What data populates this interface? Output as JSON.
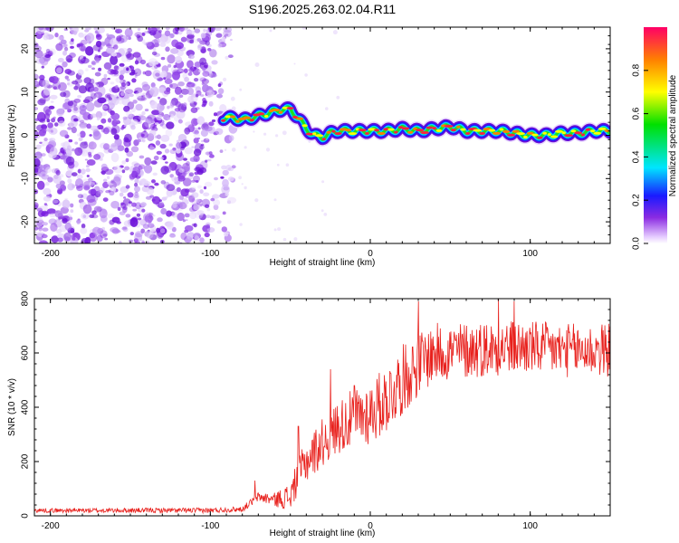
{
  "title": "S196.2025.263.02.04.R11",
  "colors": {
    "snr_line": "#e8201c",
    "axis": "#000000",
    "background": "#ffffff"
  },
  "chart_data": [
    {
      "type": "heatmap",
      "name": "spectrogram",
      "xlabel": "Height of straight line (km)",
      "ylabel": "Frequency (Hz)",
      "xlim": [
        -210,
        150
      ],
      "ylim": [
        -25,
        25
      ],
      "xticks": [
        -200,
        -100,
        0,
        100
      ],
      "yticks": [
        -20,
        -10,
        0,
        10,
        20
      ],
      "noise_region_km": [
        -210,
        -85
      ],
      "ridge": {
        "description": "spectral peak frequency vs height",
        "x": [
          -92,
          -85,
          -80,
          -75,
          -70,
          -65,
          -60,
          -55,
          -50,
          -45,
          -40,
          -35,
          -30,
          -25,
          -20,
          -10,
          0,
          10,
          20,
          30,
          40,
          50,
          60,
          70,
          80,
          90,
          100,
          110,
          120,
          130,
          140,
          150
        ],
        "y": [
          4,
          4,
          3.5,
          4,
          4.5,
          5,
          5.5,
          6,
          6,
          4,
          1.5,
          0,
          -0.5,
          0.5,
          1,
          1,
          1,
          1,
          1.5,
          1,
          1.5,
          2,
          1,
          1,
          1,
          0.5,
          0,
          0,
          0.5,
          0.5,
          1,
          1
        ]
      },
      "colorbar": {
        "label": "Normalized spectral amplitude",
        "range": [
          0.0,
          1.0
        ],
        "ticks": [
          "0.0",
          "0.2",
          "0.4",
          "0.6",
          "0.8"
        ]
      }
    },
    {
      "type": "line",
      "name": "snr",
      "xlabel": "Height of straight line (km)",
      "ylabel": "SNR (10 * v/v)",
      "xlim": [
        -210,
        150
      ],
      "ylim": [
        0,
        800
      ],
      "xticks": [
        -200,
        -100,
        0,
        100
      ],
      "yticks": [
        0,
        200,
        400,
        600,
        800
      ],
      "trend": {
        "x": [
          -210,
          -100,
          -80,
          -70,
          -60,
          -50,
          -45,
          -40,
          -30,
          -20,
          -10,
          0,
          10,
          20,
          30,
          40,
          60,
          80,
          100,
          120,
          150
        ],
        "y": [
          20,
          20,
          25,
          70,
          60,
          70,
          150,
          200,
          270,
          330,
          360,
          380,
          430,
          500,
          560,
          600,
          610,
          620,
          620,
          610,
          610
        ]
      },
      "noise_amplitude": {
        "x": [
          -210,
          -80,
          -60,
          -40,
          -20,
          0,
          20,
          40,
          100,
          150
        ],
        "y": [
          8,
          10,
          25,
          80,
          100,
          120,
          130,
          110,
          100,
          100
        ]
      },
      "peaks": [
        {
          "x": -72,
          "y": 130
        },
        {
          "x": -45,
          "y": 330
        },
        {
          "x": -25,
          "y": 540
        },
        {
          "x": -10,
          "y": 480
        },
        {
          "x": 30,
          "y": 790
        },
        {
          "x": 80,
          "y": 800
        },
        {
          "x": 90,
          "y": 790
        }
      ]
    }
  ]
}
